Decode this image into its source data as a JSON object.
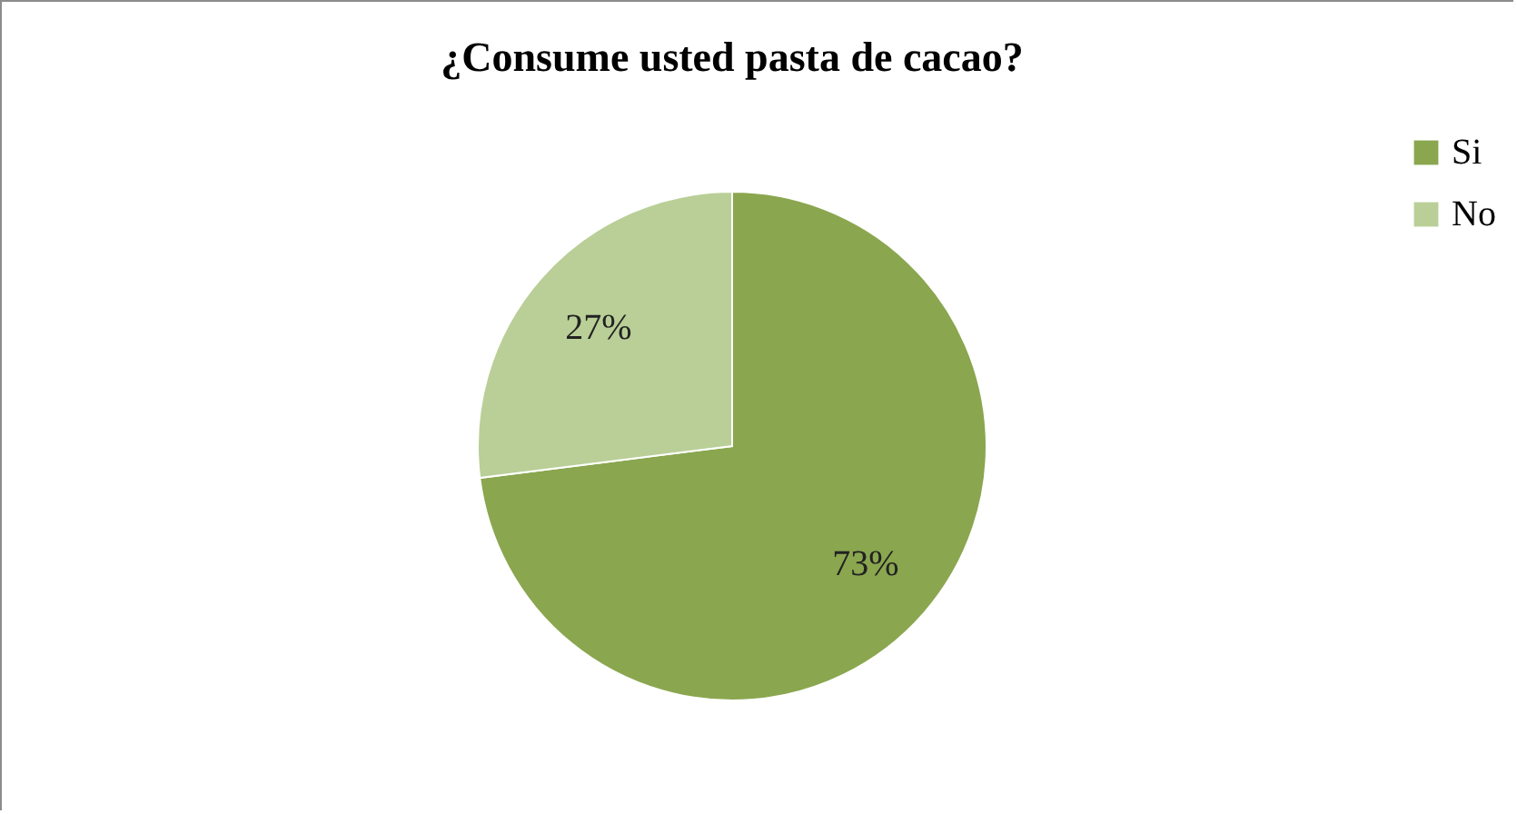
{
  "chart_data": {
    "type": "pie",
    "title": "¿Consume usted pasta de cacao?",
    "categories": [
      "Si",
      "No"
    ],
    "values": [
      73,
      27
    ],
    "colors": [
      "#8aa64f",
      "#b9cf97"
    ],
    "value_labels": [
      "73%",
      "27%"
    ],
    "legend": "right"
  }
}
